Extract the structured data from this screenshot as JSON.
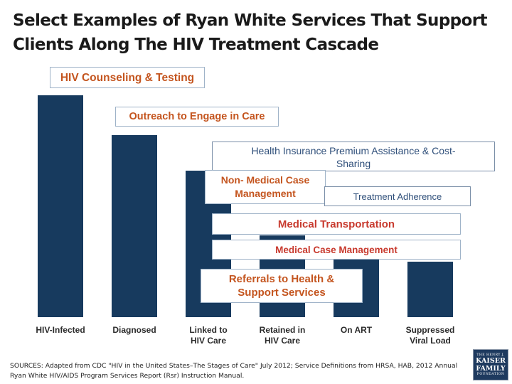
{
  "title": "Select Examples of Ryan White Services That Support Clients Along The HIV Treatment Cascade",
  "chart_data": {
    "type": "bar",
    "title": "",
    "xlabel": "",
    "ylabel": "",
    "ylim": [
      0,
      100
    ],
    "categories": [
      "HIV-Infected",
      "Diagnosed",
      "Linked to\nHIV Care",
      "Retained in\nHIV Care",
      "On ART",
      "Suppressed\nViral Load"
    ],
    "values": [
      100,
      82,
      66,
      37,
      33,
      25
    ],
    "colors": {
      "bar": "#173a5e"
    }
  },
  "services": {
    "counseling": "HIV  Counseling & Testing",
    "outreach": "Outreach to Engage in Care",
    "insurance": "Health Insurance Premium Assistance & Cost-\nSharing",
    "non_medical": "Non- Medical Case\nManagement",
    "adherence": "Treatment Adherence",
    "transportation": "Medical Transportation",
    "case_management": "Medical Case Management",
    "referrals": "Referrals to Health &\nSupport Services"
  },
  "sources": "SOURCES: Adapted from CDC \"HIV in the United States–The Stages of Care\" July 2012; Service Definitions from HRSA, HAB, 2012 Annual Ryan White HIV/AIDS Program Services Report (Rsr) Instruction Manual.",
  "logo": {
    "line1": "THE HENRY J.",
    "line2": "KAISER",
    "line3": "FAMILY",
    "line4": "FOUNDATION"
  }
}
